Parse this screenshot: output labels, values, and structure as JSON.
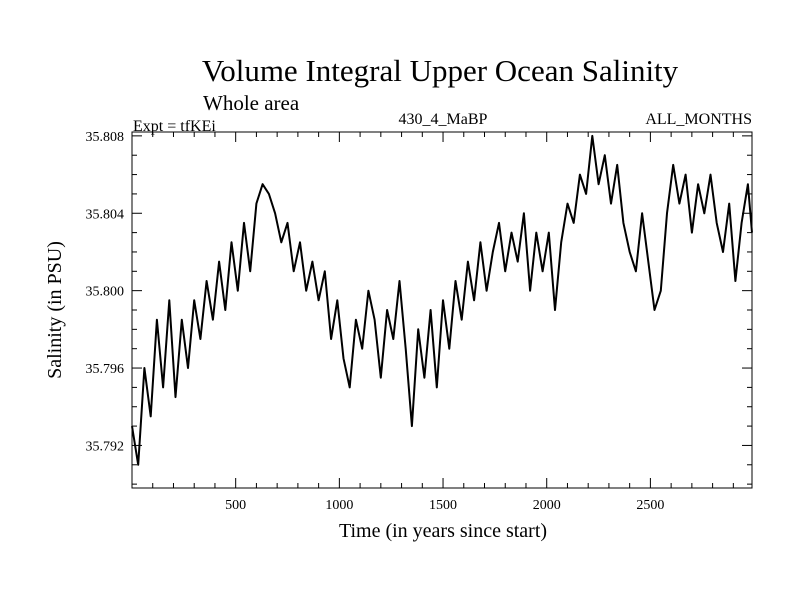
{
  "chart_data": {
    "type": "line",
    "title": "Volume Integral Upper Ocean Salinity",
    "subtitle": "Whole area",
    "experiment": "Expt = tfKEi",
    "run_label": "430_4_MaBP",
    "months_label": "ALL_MONTHS",
    "xlabel": "Time (in years since start)",
    "ylabel": "Salinity (in PSU)",
    "xlim": [
      0,
      2990
    ],
    "ylim": [
      35.7898,
      35.8082
    ],
    "xticks": [
      500,
      1000,
      1500,
      2000,
      2500
    ],
    "xtick_labels": [
      "500",
      "1000",
      "1500",
      "2000",
      "2500"
    ],
    "yticks": [
      35.792,
      35.796,
      35.8,
      35.804,
      35.808
    ],
    "ytick_labels": [
      "35.792",
      "35.796",
      "35.800",
      "35.804",
      "35.808"
    ],
    "grid": false,
    "series": [
      {
        "color": "#000000",
        "x": [
          0,
          30,
          60,
          90,
          120,
          150,
          180,
          210,
          240,
          270,
          300,
          330,
          360,
          390,
          420,
          450,
          480,
          510,
          540,
          570,
          600,
          630,
          660,
          690,
          720,
          750,
          780,
          810,
          840,
          870,
          900,
          930,
          960,
          990,
          1020,
          1050,
          1080,
          1110,
          1140,
          1170,
          1200,
          1230,
          1260,
          1290,
          1320,
          1350,
          1380,
          1410,
          1440,
          1470,
          1500,
          1530,
          1560,
          1590,
          1620,
          1650,
          1680,
          1710,
          1740,
          1770,
          1800,
          1830,
          1860,
          1890,
          1920,
          1950,
          1980,
          2010,
          2040,
          2070,
          2100,
          2130,
          2160,
          2190,
          2220,
          2250,
          2280,
          2310,
          2340,
          2370,
          2400,
          2430,
          2460,
          2490,
          2520,
          2550,
          2580,
          2610,
          2640,
          2670,
          2700,
          2730,
          2760,
          2790,
          2820,
          2850,
          2880,
          2910,
          2940,
          2970,
          2990
        ],
        "y": [
          35.793,
          35.791,
          35.796,
          35.7935,
          35.7985,
          35.795,
          35.7995,
          35.7945,
          35.7985,
          35.796,
          35.7995,
          35.7975,
          35.8005,
          35.7985,
          35.8015,
          35.799,
          35.8025,
          35.8,
          35.8035,
          35.801,
          35.8045,
          35.8055,
          35.805,
          35.804,
          35.8025,
          35.8035,
          35.801,
          35.8025,
          35.8,
          35.8015,
          35.7995,
          35.801,
          35.7975,
          35.7995,
          35.7965,
          35.795,
          35.7985,
          35.797,
          35.8,
          35.7985,
          35.7955,
          35.799,
          35.7975,
          35.8005,
          35.797,
          35.793,
          35.798,
          35.7955,
          35.799,
          35.795,
          35.7995,
          35.797,
          35.8005,
          35.7985,
          35.8015,
          35.7995,
          35.8025,
          35.8,
          35.802,
          35.8035,
          35.801,
          35.803,
          35.8015,
          35.804,
          35.8,
          35.803,
          35.801,
          35.803,
          35.799,
          35.8025,
          35.8045,
          35.8035,
          35.806,
          35.805,
          35.808,
          35.8055,
          35.807,
          35.8045,
          35.8065,
          35.8035,
          35.802,
          35.801,
          35.804,
          35.8015,
          35.799,
          35.8,
          35.804,
          35.8065,
          35.8045,
          35.806,
          35.803,
          35.8055,
          35.804,
          35.806,
          35.8035,
          35.802,
          35.8045,
          35.8005,
          35.8035,
          35.8055,
          35.803
        ]
      }
    ]
  }
}
